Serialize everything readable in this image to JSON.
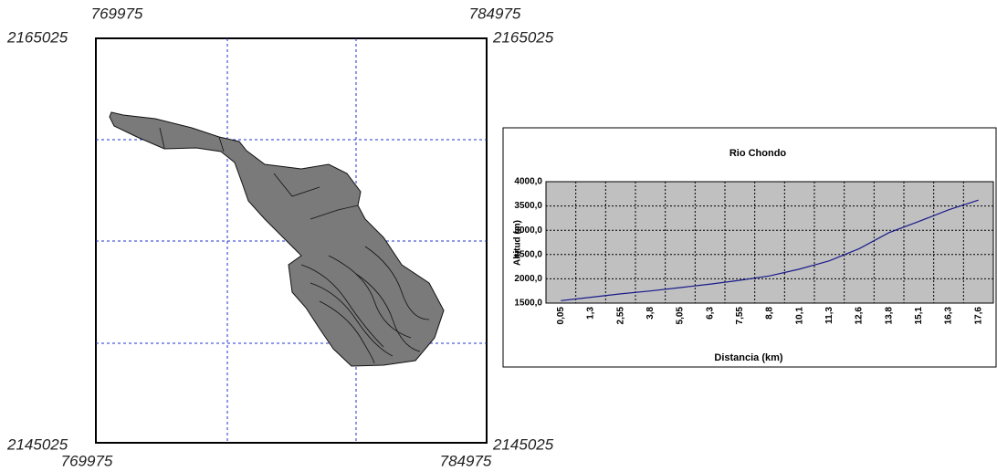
{
  "map": {
    "top_left_x": "769975",
    "top_right_x": "784975",
    "top_left_y": "2165025",
    "top_right_y": "2165025",
    "bottom_left_y": "2145025",
    "bottom_right_y": "2145025",
    "bottom_left_x": "769975",
    "bottom_right_x": "784975"
  },
  "chart_data": {
    "type": "line",
    "title": "Rio Chondo",
    "x_label": "Distancia (km)",
    "y_label": "Altitud (m)",
    "categories": [
      "0,05",
      "1,3",
      "2,55",
      "3,8",
      "5,05",
      "6,3",
      "7,55",
      "8,8",
      "10,1",
      "11,3",
      "12,6",
      "13,8",
      "15,1",
      "16,3",
      "17,6"
    ],
    "values": [
      1550,
      1620,
      1690,
      1750,
      1820,
      1890,
      1970,
      2060,
      2200,
      2370,
      2620,
      2950,
      3180,
      3420,
      3620
    ],
    "color": "#1a1a8c",
    "ylim": [
      1500,
      4000
    ],
    "yticks": [
      {
        "value": 1500,
        "label": "1500,0"
      },
      {
        "value": 2000,
        "label": "2000,0"
      },
      {
        "value": 2500,
        "label": "2500,0"
      },
      {
        "value": 3000,
        "label": "3000,0"
      },
      {
        "value": 3500,
        "label": "3500,0"
      },
      {
        "value": 4000,
        "label": "4000,0"
      }
    ],
    "grid": true
  }
}
